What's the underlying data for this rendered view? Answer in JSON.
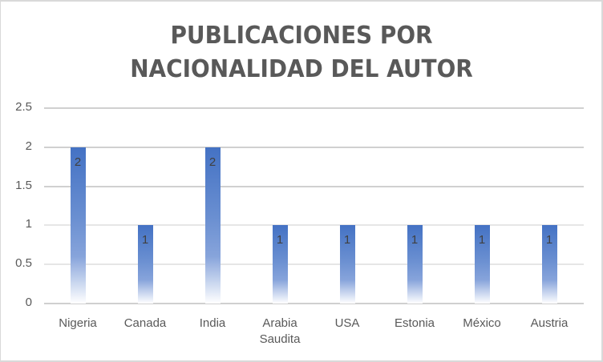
{
  "chart_data": {
    "type": "bar",
    "title": "PUBLICACIONES POR NACIONALIDAD DEL AUTOR",
    "title_lines": [
      "PUBLICACIONES POR",
      "NACIONALIDAD DEL AUTOR"
    ],
    "categories": [
      "Nigeria",
      "Canada",
      "India",
      "Arabia Saudita",
      "USA",
      "Estonia",
      "México",
      "Austria"
    ],
    "category_lines": [
      [
        "Nigeria"
      ],
      [
        "Canada"
      ],
      [
        "India"
      ],
      [
        "Arabia",
        "Saudita"
      ],
      [
        "USA"
      ],
      [
        "Estonia"
      ],
      [
        "México"
      ],
      [
        "Austria"
      ]
    ],
    "values": [
      2,
      1,
      2,
      1,
      1,
      1,
      1,
      1
    ],
    "data_labels": [
      "2",
      "1",
      "2",
      "1",
      "1",
      "1",
      "1",
      "1"
    ],
    "xlabel": "",
    "ylabel": "",
    "ylim": [
      0,
      2.5
    ],
    "yticks": [
      "0",
      "0.5",
      "1",
      "1.5",
      "2",
      "2.5"
    ],
    "grid": true,
    "legend": "none",
    "bar_color": "#4472c4",
    "bar_fill": "gradient-fade-to-white"
  }
}
